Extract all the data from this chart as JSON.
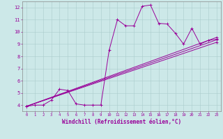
{
  "xlabel": "Windchill (Refroidissement éolien,°C)",
  "xlim": [
    -0.5,
    23.5
  ],
  "ylim": [
    3.5,
    12.5
  ],
  "xticks": [
    0,
    1,
    2,
    3,
    4,
    5,
    6,
    7,
    8,
    9,
    10,
    11,
    12,
    13,
    14,
    15,
    16,
    17,
    18,
    19,
    20,
    21,
    22,
    23
  ],
  "yticks": [
    4,
    5,
    6,
    7,
    8,
    9,
    10,
    11,
    12
  ],
  "bg_color": "#cce8e8",
  "line_color": "#990099",
  "series0_x": [
    0,
    1,
    2,
    3,
    4,
    5,
    6,
    7,
    8,
    9,
    10,
    11,
    12,
    13,
    14,
    15,
    16,
    17,
    18,
    19,
    20,
    21,
    22,
    23
  ],
  "series0_y": [
    3.9,
    4.0,
    4.0,
    4.4,
    5.3,
    5.2,
    4.1,
    4.0,
    4.0,
    4.0,
    8.5,
    11.0,
    10.5,
    10.5,
    12.1,
    12.2,
    10.7,
    10.65,
    9.9,
    9.0,
    10.3,
    9.0,
    9.3,
    9.4
  ],
  "line1": {
    "x": [
      0,
      23
    ],
    "y": [
      3.9,
      9.15
    ]
  },
  "line2": {
    "x": [
      0,
      23
    ],
    "y": [
      3.9,
      9.55
    ]
  },
  "line3": {
    "x": [
      0,
      23
    ],
    "y": [
      3.9,
      9.35
    ]
  },
  "grid_color": "#aacccc",
  "spine_color": "#888888"
}
